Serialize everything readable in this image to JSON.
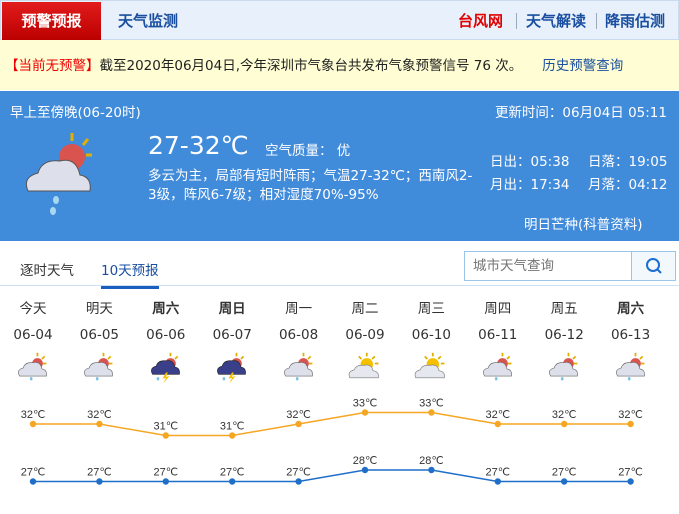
{
  "topnav": {
    "active": "预警预报",
    "monitor": "天气监测",
    "right": [
      {
        "label": "台风网",
        "color": "#e00000"
      },
      {
        "label": "天气解读",
        "color": "#1a4fa0"
      },
      {
        "label": "降雨估测",
        "color": "#1a4fa0"
      }
    ]
  },
  "alert": {
    "status": "【当前无预警】",
    "text": "截至2020年06月04日,今年深圳市气象台共发布气象预警信号 76 次。",
    "link": "历史预警查询"
  },
  "current": {
    "period": "早上至傍晚(06-20时)",
    "updated": "更新时间：06月04日 05:11",
    "temp": "27-32℃",
    "air": "空气质量： 优",
    "desc1": "多云为主，局部有短时阵雨；气温27-32℃；西南风2-",
    "desc2": "3级，阵风6-7级；相对湿度70%-95%",
    "sunrise": "日出：05:38",
    "sunset": "日落：19:05",
    "moonrise": "月出：17:34",
    "moonset": "月落：04:12",
    "solar_term": "明日芒种(科普资料)",
    "icon": "cloud-sun-rain"
  },
  "subtabs": {
    "hourly": "逐时天气",
    "ten_day": "10天预报"
  },
  "search": {
    "placeholder": "城市天气查询"
  },
  "chart_data": {
    "type": "line",
    "categories": [
      "06-04",
      "06-05",
      "06-06",
      "06-07",
      "06-08",
      "06-09",
      "06-10",
      "06-11",
      "06-12",
      "06-13"
    ],
    "weekdays": [
      "今天",
      "明天",
      "周六",
      "周日",
      "周一",
      "周二",
      "周三",
      "周四",
      "周五",
      "周六"
    ],
    "icons": [
      "cloud-sun-rain",
      "cloud-sun-rain",
      "thunderstorm",
      "thunderstorm",
      "cloud-sun-rain",
      "sun-cloud",
      "sun-cloud",
      "cloud-sun-rain",
      "cloud-sun-rain",
      "cloud-sun-rain"
    ],
    "series": [
      {
        "values": [
          32,
          32,
          31,
          31,
          32,
          33,
          33,
          32,
          32,
          32
        ],
        "color": "#f5a623"
      },
      {
        "values": [
          27,
          27,
          27,
          27,
          27,
          28,
          28,
          27,
          27,
          27
        ],
        "color": "#1f6fc8"
      }
    ],
    "unit": "℃"
  }
}
